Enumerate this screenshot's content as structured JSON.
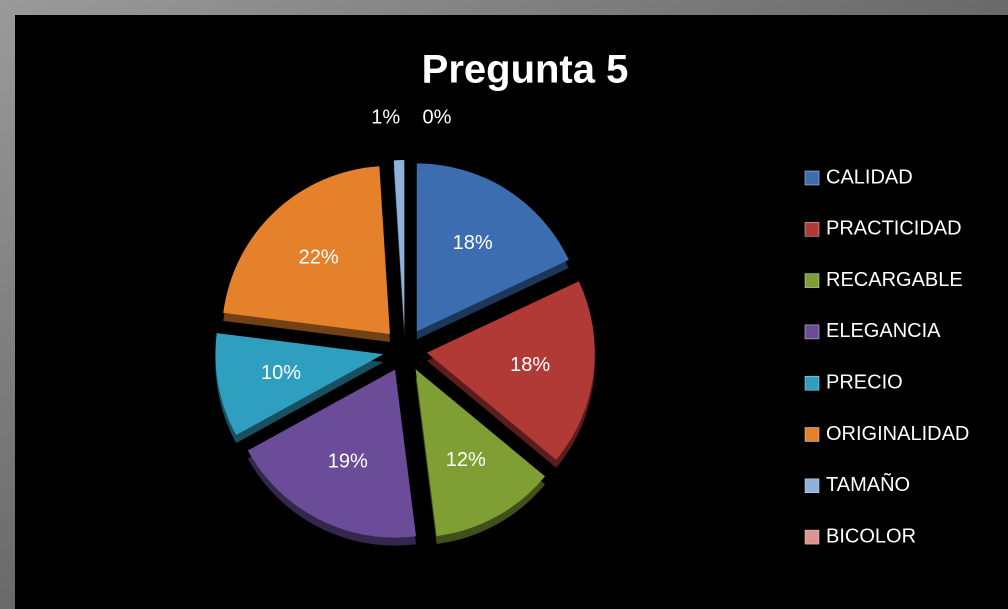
{
  "chart_data": {
    "type": "pie",
    "title": "Pregunta 5",
    "categories": [
      "CALIDAD",
      "PRACTICIDAD",
      "RECARGABLE",
      "ELEGANCIA",
      "PRECIO",
      "ORIGINALIDAD",
      "TAMAÑO",
      "BICOLOR"
    ],
    "values": [
      18,
      18,
      12,
      19,
      10,
      22,
      1,
      0
    ],
    "value_labels": [
      "18%",
      "18%",
      "12%",
      "19%",
      "10%",
      "22%",
      "1%",
      "0%"
    ],
    "colors": [
      "#3b6db0",
      "#b23a36",
      "#7f9f34",
      "#6a4c98",
      "#2f9fbf",
      "#e4812a",
      "#8db3dd",
      "#dc9391"
    ],
    "legend": "right"
  }
}
